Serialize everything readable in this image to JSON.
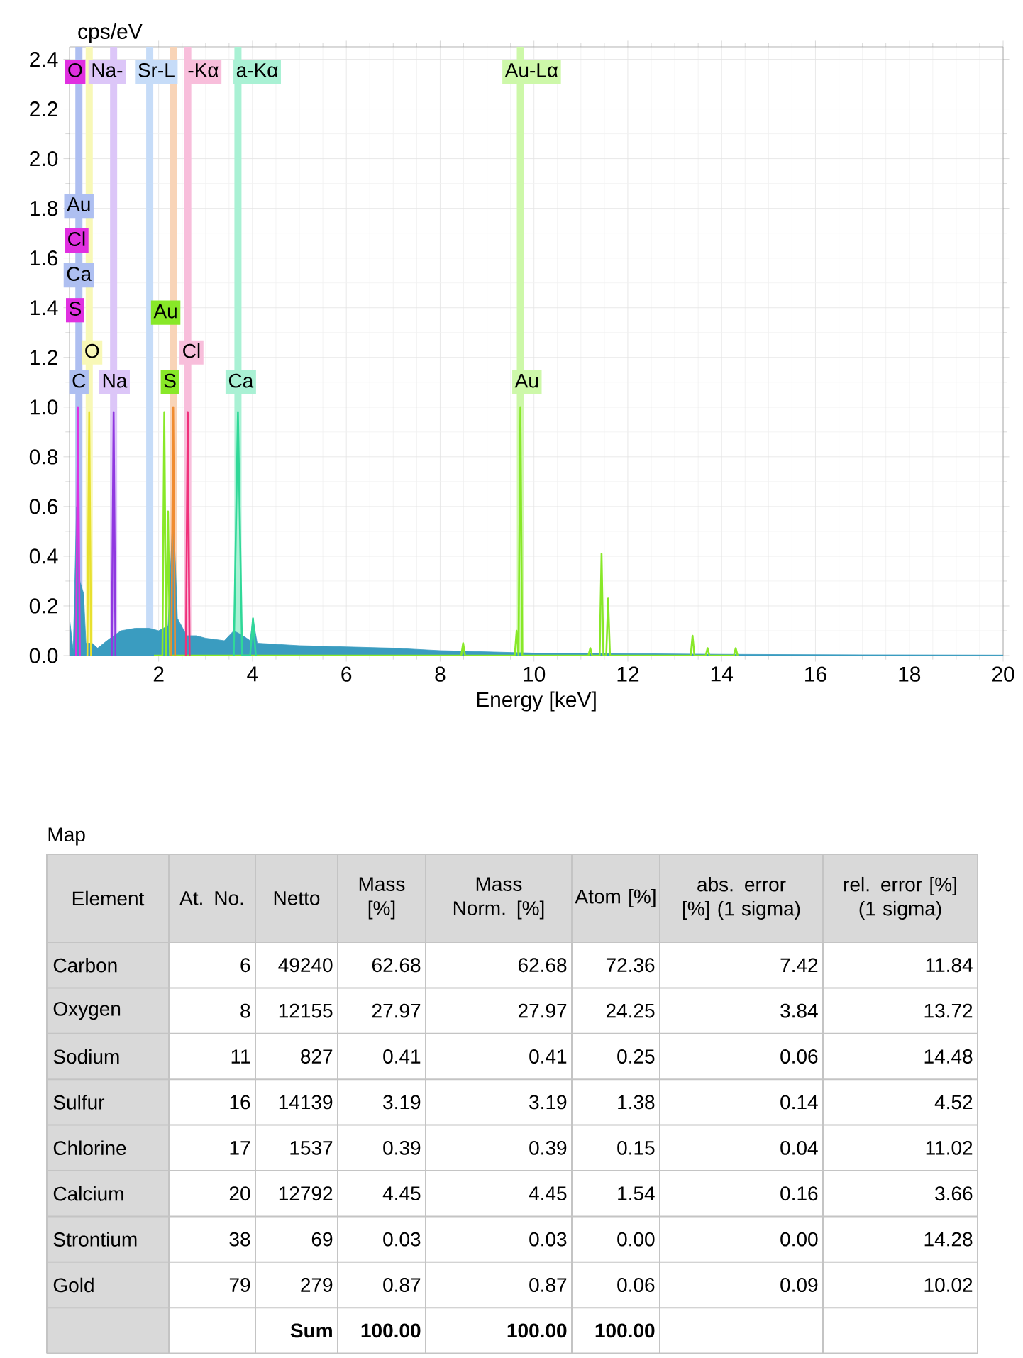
{
  "chart_data": [
    {
      "type": "area",
      "xlabel": "Energy [keV]",
      "ylabel": "cps/eV",
      "xlim": [
        0.1,
        20
      ],
      "ylim": [
        0,
        2.45
      ],
      "xticks": [
        2,
        4,
        6,
        8,
        10,
        12,
        14,
        16,
        18,
        20
      ],
      "yticks": [
        {
          "value": 0,
          "label": "0.0"
        },
        {
          "value": 0.2,
          "label": "0.2"
        },
        {
          "value": 0.4,
          "label": "0.4"
        },
        {
          "value": 0.6,
          "label": "0.6"
        },
        {
          "value": 0.8,
          "label": "0.8"
        },
        {
          "value": 1.0,
          "label": "1.0"
        },
        {
          "value": 1.2,
          "label": "1.2"
        },
        {
          "value": 1.4,
          "label": "1.4"
        },
        {
          "value": 1.6,
          "label": "1.6"
        },
        {
          "value": 1.8,
          "label": "1.8"
        },
        {
          "value": 2.0,
          "label": "2.0"
        },
        {
          "value": 2.2,
          "label": "2.2"
        },
        {
          "value": 2.4,
          "label": "2.4"
        }
      ],
      "grid": true,
      "series": [
        {
          "color": "#3a9cc0",
          "x": [
            0.1,
            0.18,
            0.25,
            0.32,
            0.4,
            0.45,
            0.58,
            0.7,
            0.9,
            1.04,
            1.2,
            1.5,
            1.8,
            2.0,
            2.2,
            2.31,
            2.4,
            2.6,
            2.8,
            3.0,
            3.4,
            3.6,
            3.8,
            3.95,
            4.01,
            4.1,
            5,
            6,
            7,
            8,
            9,
            10,
            12,
            14,
            17,
            20
          ],
          "values": [
            0.15,
            0.02,
            0.6,
            0.3,
            0.25,
            0.05,
            0.05,
            0.03,
            0.06,
            0.08,
            0.1,
            0.11,
            0.11,
            0.1,
            0.12,
            0.6,
            0.15,
            0.08,
            0.08,
            0.07,
            0.06,
            0.1,
            0.08,
            0.06,
            0.15,
            0.05,
            0.04,
            0.035,
            0.03,
            0.02,
            0.015,
            0.01,
            0.008,
            0.005,
            0.003,
            0.002
          ]
        },
        {
          "type": "line",
          "color": "#88e828",
          "x": [
            1.9,
            2.08,
            2.12,
            2.16,
            2.2,
            2.24,
            8.45,
            8.49,
            8.53,
            9.59,
            9.63,
            9.67,
            9.71,
            9.75,
            11.16,
            11.2,
            11.24,
            11.4,
            11.44,
            11.48,
            11.54,
            11.58,
            11.62,
            13.34,
            13.38,
            13.42,
            13.66,
            13.7,
            13.74,
            14.26,
            14.3,
            14.34
          ],
          "values": [
            0,
            0,
            0.98,
            0,
            0.58,
            0,
            0,
            0.05,
            0,
            0,
            0.1,
            0,
            1.0,
            0,
            0,
            0.03,
            0,
            0,
            0.41,
            0,
            0,
            0.23,
            0,
            0,
            0.08,
            0,
            0,
            0.03,
            0,
            0,
            0.03,
            0
          ]
        },
        {
          "type": "line",
          "color": "#30d898",
          "x": [
            3.6,
            3.69,
            3.78,
            3.95,
            4.01,
            4.07
          ],
          "values": [
            0,
            0.98,
            0,
            0,
            0.15,
            0
          ]
        },
        {
          "type": "line",
          "color": "#f08c30",
          "x": [
            2.27,
            2.31,
            2.35
          ],
          "values": [
            0,
            1.0,
            0
          ]
        },
        {
          "type": "line",
          "color": "#f0307a",
          "x": [
            2.58,
            2.62,
            2.66
          ],
          "values": [
            0,
            0.98,
            0
          ]
        },
        {
          "type": "line",
          "color": "#9038e0",
          "x": [
            1.0,
            1.04,
            1.08
          ],
          "values": [
            0,
            0.98,
            0
          ]
        },
        {
          "type": "line",
          "color": "#e030e0",
          "x": [
            0.24,
            0.28,
            0.32
          ],
          "values": [
            0,
            1.0,
            0
          ]
        },
        {
          "type": "line",
          "color": "#e8e030",
          "x": [
            0.48,
            0.52,
            0.56
          ],
          "values": [
            0,
            0.98,
            0
          ]
        }
      ],
      "ref_lines": [
        {
          "axis": "x",
          "value": 0.3,
          "color": "#aebff1"
        },
        {
          "axis": "x",
          "value": 0.52,
          "color": "#f8f8b7"
        },
        {
          "axis": "x",
          "value": 1.04,
          "color": "#dcc6f8"
        },
        {
          "axis": "x",
          "value": 1.81,
          "color": "#c6dcf8"
        },
        {
          "axis": "x",
          "value": 2.31,
          "color": "#f8d4b7"
        },
        {
          "axis": "x",
          "value": 2.62,
          "color": "#f8bedb"
        },
        {
          "axis": "x",
          "value": 3.69,
          "color": "#a9f1d4"
        },
        {
          "axis": "x",
          "value": 9.71,
          "color": "#cdf8a9"
        }
      ],
      "annotations": [
        {
          "text": "O",
          "x": 0.22,
          "y": 2.35
        },
        {
          "text": "Na-",
          "x": 0.9,
          "y": 2.35
        },
        {
          "text": "Sr-L",
          "x": 1.95,
          "y": 2.35
        },
        {
          "text": "-Kα",
          "x": 2.95,
          "y": 2.35
        },
        {
          "text": "a-Kα",
          "x": 4.1,
          "y": 2.35
        },
        {
          "text": "Au-Lα",
          "x": 9.95,
          "y": 2.35
        },
        {
          "text": "Au",
          "x": 0.3,
          "y": 1.81
        },
        {
          "text": "Cl",
          "x": 0.25,
          "y": 1.67
        },
        {
          "text": "Ca",
          "x": 0.3,
          "y": 1.53
        },
        {
          "text": "S",
          "x": 0.22,
          "y": 1.39
        },
        {
          "text": "Au",
          "x": 2.15,
          "y": 1.38
        },
        {
          "text": "O",
          "x": 0.58,
          "y": 1.22
        },
        {
          "text": "Cl",
          "x": 2.7,
          "y": 1.22
        },
        {
          "text": "C",
          "x": 0.3,
          "y": 1.1
        },
        {
          "text": "Na",
          "x": 1.06,
          "y": 1.1
        },
        {
          "text": "S",
          "x": 2.24,
          "y": 1.1
        },
        {
          "text": "Ca",
          "x": 3.75,
          "y": 1.1
        },
        {
          "text": "Au",
          "x": 9.85,
          "y": 1.1
        }
      ]
    },
    {
      "type": "other",
      "title": "Map",
      "categories": [
        "Element",
        "At. No.",
        "Netto",
        "Mass [%]",
        "Mass Norm. [%]",
        "Atom [%]",
        "abs. error [%] (1 sigma)",
        "rel. error [%] (1 sigma)"
      ],
      "y_categories": [
        "Carbon",
        "Oxygen",
        "Sodium",
        "Sulfur",
        "Chlorine",
        "Calcium",
        "Strontium",
        "Gold",
        null
      ],
      "cell_labels": [
        [
          "6",
          "49240",
          "62.68",
          "62.68",
          "72.36",
          "7.42",
          "11.84"
        ],
        [
          "8",
          "12155",
          "27.97",
          "27.97",
          "24.25",
          "3.84",
          "13.72"
        ],
        [
          "11",
          "827",
          "0.41",
          "0.41",
          "0.25",
          "0.06",
          "14.48"
        ],
        [
          "16",
          "14139",
          "3.19",
          "3.19",
          "1.38",
          "0.14",
          "4.52"
        ],
        [
          "17",
          "1537",
          "0.39",
          "0.39",
          "0.15",
          "0.04",
          "11.02"
        ],
        [
          "20",
          "12792",
          "4.45",
          "4.45",
          "1.54",
          "0.16",
          "3.66"
        ],
        [
          "38",
          "69",
          "0.03",
          "0.03",
          "0.00",
          "0.00",
          "14.28"
        ],
        [
          "79",
          "279",
          "0.87",
          "0.87",
          "0.06",
          "0.09",
          "10.02"
        ],
        [
          null,
          "Sum",
          "100.00",
          "100.00",
          "100.00",
          null,
          null
        ]
      ]
    }
  ]
}
